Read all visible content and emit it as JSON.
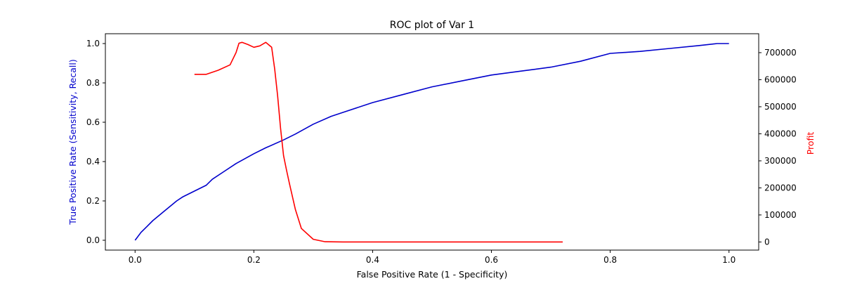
{
  "chart_data": {
    "type": "line",
    "title": "ROC plot of Var 1",
    "xlabel": "False Positive Rate (1 - Specificity)",
    "ylabel": "True Positive Rate (Sensitivity, Recall)",
    "y2label": "Profit",
    "xlim": [
      -0.05,
      1.05
    ],
    "ylim": [
      -0.05,
      1.05
    ],
    "y2lim": [
      -30000,
      770000
    ],
    "xticks": [
      0.0,
      0.2,
      0.4,
      0.6,
      0.8,
      1.0
    ],
    "xtick_labels": [
      "0.0",
      "0.2",
      "0.4",
      "0.6",
      "0.8",
      "1.0"
    ],
    "yticks": [
      0.0,
      0.2,
      0.4,
      0.6,
      0.8,
      1.0
    ],
    "ytick_labels": [
      "0.0",
      "0.2",
      "0.4",
      "0.6",
      "0.8",
      "1.0"
    ],
    "y2ticks": [
      0,
      100000,
      200000,
      300000,
      400000,
      500000,
      600000,
      700000
    ],
    "y2tick_labels": [
      "0",
      "100000",
      "200000",
      "300000",
      "400000",
      "500000",
      "600000",
      "700000"
    ],
    "grid": false,
    "series": [
      {
        "color": "#0000cc",
        "axis": "left",
        "x": [
          0.0,
          0.01,
          0.02,
          0.03,
          0.05,
          0.07,
          0.08,
          0.1,
          0.12,
          0.13,
          0.15,
          0.17,
          0.2,
          0.22,
          0.25,
          0.27,
          0.3,
          0.33,
          0.35,
          0.4,
          0.45,
          0.5,
          0.55,
          0.6,
          0.65,
          0.7,
          0.75,
          0.8,
          0.85,
          0.9,
          0.95,
          0.98,
          1.0
        ],
        "y": [
          0.0,
          0.04,
          0.07,
          0.1,
          0.15,
          0.2,
          0.22,
          0.25,
          0.28,
          0.31,
          0.35,
          0.39,
          0.44,
          0.47,
          0.51,
          0.54,
          0.59,
          0.63,
          0.65,
          0.7,
          0.74,
          0.78,
          0.81,
          0.84,
          0.86,
          0.88,
          0.91,
          0.95,
          0.96,
          0.975,
          0.99,
          1.0,
          1.0
        ]
      },
      {
        "color": "#ff0000",
        "axis": "right",
        "x": [
          0.1,
          0.12,
          0.14,
          0.16,
          0.17,
          0.175,
          0.18,
          0.19,
          0.2,
          0.21,
          0.22,
          0.23,
          0.235,
          0.24,
          0.245,
          0.25,
          0.255,
          0.26,
          0.27,
          0.28,
          0.3,
          0.32,
          0.35,
          0.4,
          0.5,
          0.6,
          0.72
        ],
        "y": [
          620000,
          620000,
          635000,
          655000,
          700000,
          735000,
          738000,
          730000,
          720000,
          725000,
          738000,
          720000,
          640000,
          540000,
          420000,
          320000,
          265000,
          215000,
          120000,
          50000,
          10000,
          1000,
          0,
          0,
          0,
          0,
          0
        ]
      }
    ]
  }
}
